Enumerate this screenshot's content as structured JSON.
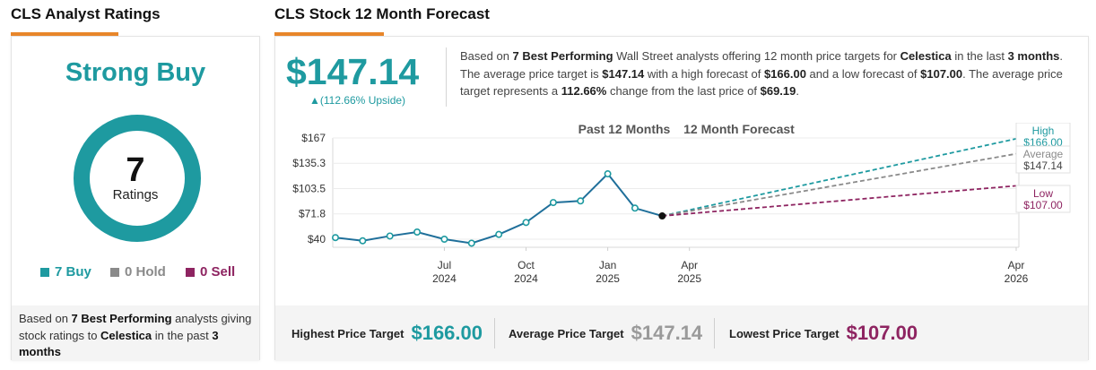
{
  "left": {
    "title": "CLS Analyst Ratings",
    "consensus": "Strong Buy",
    "total": "7",
    "total_label": "Ratings",
    "legend": [
      {
        "label": "7 Buy",
        "count": 7,
        "color": "#1e9aa0"
      },
      {
        "label": "0 Hold",
        "count": 0,
        "color": "#8a8a8a"
      },
      {
        "label": "0 Sell",
        "count": 0,
        "color": "#8e2461"
      }
    ],
    "footer": {
      "t1": "Based on ",
      "b1": "7 Best Performing",
      "t2": " analysts giving stock ratings to ",
      "b2": "Celestica",
      "t3": "  in the past ",
      "b3": "3 months"
    }
  },
  "right": {
    "title": "CLS Stock 12 Month Forecast",
    "price": "$147.14",
    "upside": "▲(112.66% Upside)",
    "summary": {
      "s1": "Based on ",
      "b1": "7 Best Performing",
      "s2": " Wall Street analysts offering 12 month price targets for ",
      "b2": "Celestica",
      "s3": " in the last ",
      "b3": "3 months",
      "s4": ". The average price target is ",
      "avg": "$147.14",
      "s5": " with a high forecast of ",
      "high": "$166.00",
      "s6": " and a low forecast of ",
      "low": "$107.00",
      "s7": ". The average price target represents a ",
      "pct": "112.66%",
      "s8": " change from the last price of ",
      "last": "$69.19",
      "s9": "."
    },
    "bottom": {
      "high_label": "Highest Price Target",
      "high_value": "$166.00",
      "avg_label": "Average Price Target",
      "avg_value": "$147.14",
      "low_label": "Lowest Price Target",
      "low_value": "$107.00"
    }
  },
  "colors": {
    "teal": "#1e9aa0",
    "grey": "#8a8a8a",
    "purple": "#8e2461",
    "orange": "#e8862a",
    "history_line": "#1f6f9a"
  },
  "chart_data": {
    "type": "line",
    "header_past": "Past 12 Months",
    "header_forecast": "12 Month Forecast",
    "y_ticks": [
      "$167",
      "$135.3",
      "$103.5",
      "$71.8",
      "$40"
    ],
    "y_tick_values": [
      167,
      135.3,
      103.5,
      71.8,
      40
    ],
    "ylim": [
      40,
      167
    ],
    "x_ticks": [
      {
        "month": "Jul",
        "year": "2024",
        "index": 4
      },
      {
        "month": "Oct",
        "year": "2024",
        "index": 7
      },
      {
        "month": "Jan",
        "year": "2025",
        "index": 10
      },
      {
        "month": "Apr",
        "year": "2025",
        "index": 13
      },
      {
        "month": "Apr",
        "year": "2026",
        "index": 25
      }
    ],
    "history": {
      "dates": [
        "2024-04",
        "2024-05",
        "2024-06",
        "2024-07",
        "2024-08",
        "2024-09",
        "2024-10",
        "2024-11",
        "2024-12",
        "2025-01",
        "2025-02",
        "2025-03",
        "2025-04"
      ],
      "values": [
        42,
        38,
        44,
        49,
        40,
        35,
        46,
        61,
        86,
        88,
        122,
        79,
        69.19
      ]
    },
    "last_price": 69.19,
    "forecast": [
      {
        "name": "High",
        "value": 166.0,
        "label": "$166.00",
        "color": "#1e9aa0"
      },
      {
        "name": "Average",
        "value": 147.14,
        "label": "$147.14",
        "color": "#8a8a8a"
      },
      {
        "name": "Low",
        "value": 107.0,
        "label": "$107.00",
        "color": "#8e2461"
      }
    ]
  }
}
